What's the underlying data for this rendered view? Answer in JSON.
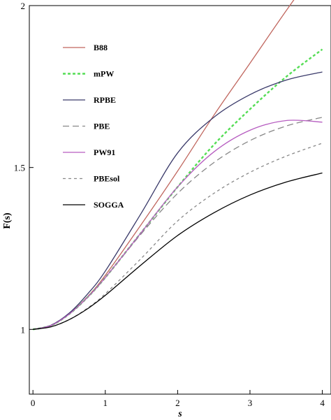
{
  "chart_data": {
    "type": "line",
    "xlabel": "s",
    "ylabel": "F(s)",
    "xlim": [
      -0.05,
      4.12
    ],
    "ylim": [
      0.8,
      2.0
    ],
    "xticks": [
      0,
      1,
      2,
      3,
      4
    ],
    "yticks": [
      1,
      1.5,
      2
    ],
    "ytick_labels": [
      "1",
      "1.5",
      "2"
    ],
    "grid": false,
    "legend_position": "top-left",
    "series": [
      {
        "name": "B88",
        "color": "#c0665e",
        "dash": "solid",
        "x": [
          0,
          0.25,
          0.5,
          0.75,
          1,
          1.5,
          2,
          2.5,
          3,
          3.5,
          4
        ],
        "y": [
          1.0,
          1.012,
          1.048,
          1.1,
          1.167,
          1.325,
          1.489,
          1.661,
          1.822,
          1.984,
          2.14
        ]
      },
      {
        "name": "mPW",
        "color": "#55dd55",
        "dash": "dotted",
        "x": [
          0,
          0.25,
          0.5,
          0.75,
          1,
          1.5,
          2,
          2.5,
          3,
          3.5,
          4
        ],
        "y": [
          1.0,
          1.012,
          1.047,
          1.098,
          1.16,
          1.3,
          1.44,
          1.57,
          1.68,
          1.78,
          1.865
        ]
      },
      {
        "name": "RPBE",
        "color": "#3a3a6a",
        "dash": "solid",
        "x": [
          0,
          0.25,
          0.5,
          0.75,
          1,
          1.5,
          2,
          2.5,
          3,
          3.5,
          4
        ],
        "y": [
          1.0,
          1.013,
          1.05,
          1.108,
          1.18,
          1.36,
          1.545,
          1.655,
          1.725,
          1.77,
          1.795
        ]
      },
      {
        "name": "PBE",
        "color": "#888888",
        "dash": "dashed",
        "x": [
          0,
          0.25,
          0.5,
          0.75,
          1,
          1.5,
          2,
          2.5,
          3,
          3.5,
          4
        ],
        "y": [
          1.0,
          1.012,
          1.047,
          1.098,
          1.16,
          1.296,
          1.42,
          1.515,
          1.583,
          1.628,
          1.655
        ]
      },
      {
        "name": "PW91",
        "color": "#b65cc0",
        "dash": "solid",
        "x": [
          0,
          0.25,
          0.5,
          0.75,
          1,
          1.5,
          2,
          2.5,
          3,
          3.5,
          4
        ],
        "y": [
          1.0,
          1.012,
          1.047,
          1.098,
          1.16,
          1.3,
          1.44,
          1.548,
          1.615,
          1.645,
          1.64
        ]
      },
      {
        "name": "PBEsol",
        "color": "#888888",
        "dash": "short-dashed",
        "x": [
          0,
          0.25,
          0.5,
          0.75,
          1,
          1.5,
          2,
          2.5,
          3,
          3.5,
          4
        ],
        "y": [
          1.0,
          1.008,
          1.03,
          1.065,
          1.11,
          1.22,
          1.335,
          1.42,
          1.485,
          1.535,
          1.575
        ]
      },
      {
        "name": "SOGGA",
        "color": "#000000",
        "dash": "solid",
        "x": [
          0,
          0.25,
          0.5,
          0.75,
          1,
          1.5,
          2,
          2.5,
          3,
          3.5,
          4
        ],
        "y": [
          1.0,
          1.008,
          1.03,
          1.063,
          1.105,
          1.2,
          1.29,
          1.36,
          1.415,
          1.455,
          1.483
        ]
      }
    ]
  }
}
